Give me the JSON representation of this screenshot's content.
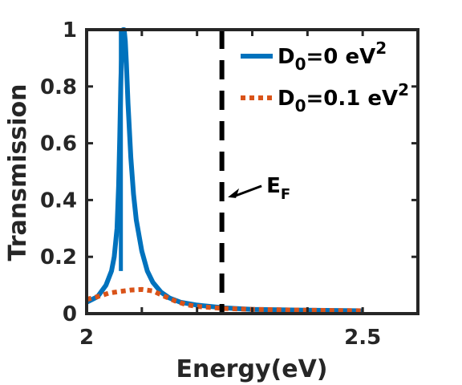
{
  "chart_data": {
    "type": "line",
    "xlabel": "Energy(eV)",
    "ylabel": "Transmission",
    "xlim": [
      2.0,
      2.6
    ],
    "ylim": [
      0,
      1
    ],
    "x_ticks": [
      2.0,
      2.1,
      2.2,
      2.3,
      2.4,
      2.5,
      2.6
    ],
    "x_tick_labels": [
      "2",
      "",
      "",
      "",
      "",
      "2.5",
      ""
    ],
    "y_ticks": [
      0,
      0.2,
      0.4,
      0.6,
      0.8,
      1.0
    ],
    "y_tick_labels": [
      "0",
      "0.2",
      "0.4",
      "0.6",
      "0.8",
      "1"
    ],
    "grid": false,
    "legend_position": "top-right",
    "series": [
      {
        "name_main": "D",
        "name_sub": "0",
        "name_rest": "=0 eV",
        "name_sup": "2",
        "style": "solid",
        "color": "#0072BD",
        "x": [
          2.0,
          2.02,
          2.035,
          2.045,
          2.05,
          2.055,
          2.058,
          2.06,
          2.062,
          2.064,
          2.066,
          2.068,
          2.07,
          2.072,
          2.075,
          2.08,
          2.085,
          2.09,
          2.1,
          2.11,
          2.12,
          2.135,
          2.15,
          2.17,
          2.2,
          2.25,
          2.3,
          2.4,
          2.5
        ],
        "y": [
          0.04,
          0.06,
          0.1,
          0.15,
          0.2,
          0.3,
          0.45,
          0.62,
          0.82,
          0.95,
          1.0,
          1.0,
          0.96,
          0.88,
          0.74,
          0.55,
          0.42,
          0.33,
          0.22,
          0.15,
          0.11,
          0.075,
          0.055,
          0.04,
          0.03,
          0.02,
          0.015,
          0.012,
          0.01
        ]
      },
      {
        "name_main": "D",
        "name_sub": "0",
        "name_rest": "=0.1 eV",
        "name_sup": "2",
        "style": "dotted",
        "color": "#D95319",
        "x": [
          2.0,
          2.02,
          2.04,
          2.06,
          2.08,
          2.1,
          2.12,
          2.14,
          2.16,
          2.18,
          2.2,
          2.25,
          2.3,
          2.4,
          2.5
        ],
        "y": [
          0.05,
          0.06,
          0.072,
          0.078,
          0.083,
          0.085,
          0.08,
          0.062,
          0.045,
          0.032,
          0.025,
          0.018,
          0.015,
          0.012,
          0.01
        ]
      },
      {
        "name": "",
        "style": "vertical-spike",
        "color": "#0072BD",
        "x": [
          2.062,
          2.062
        ],
        "y": [
          0.15,
          1.0
        ]
      }
    ],
    "reference_lines": [
      {
        "x": 2.245,
        "style": "dashed",
        "color": "#000000"
      }
    ],
    "annotations": [
      {
        "text_main": "E",
        "text_sub": "F",
        "arrow_to": {
          "x": 2.25,
          "y": 0.41
        }
      }
    ]
  }
}
